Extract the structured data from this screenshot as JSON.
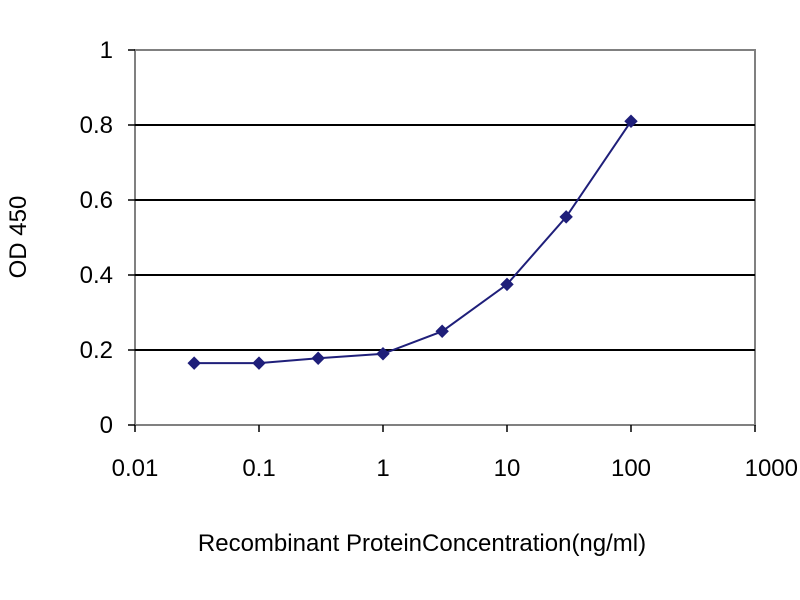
{
  "chart_data": {
    "type": "line",
    "title": "",
    "xlabel": "Recombinant ProteinConcentration(ng/ml)",
    "ylabel": "OD 450",
    "x_scale": "log",
    "xlim": [
      0.01,
      1000
    ],
    "ylim": [
      0,
      1
    ],
    "x_ticks": [
      {
        "value": 0.01,
        "label": "0.01"
      },
      {
        "value": 0.1,
        "label": "0.1"
      },
      {
        "value": 1,
        "label": "1"
      },
      {
        "value": 10,
        "label": "10"
      },
      {
        "value": 100,
        "label": "100"
      },
      {
        "value": 1000,
        "label": "1000"
      }
    ],
    "y_ticks": [
      {
        "value": 0,
        "label": "0"
      },
      {
        "value": 0.2,
        "label": "0.2"
      },
      {
        "value": 0.4,
        "label": "0.4"
      },
      {
        "value": 0.6,
        "label": "0.6"
      },
      {
        "value": 0.8,
        "label": "0.8"
      },
      {
        "value": 1,
        "label": "1"
      }
    ],
    "grid": "horizontal",
    "legend": "none",
    "series": [
      {
        "color": "#1f1f7a",
        "marker": "diamond",
        "points": [
          {
            "x": 0.03,
            "y": 0.165
          },
          {
            "x": 0.1,
            "y": 0.165
          },
          {
            "x": 0.3,
            "y": 0.178
          },
          {
            "x": 1,
            "y": 0.19
          },
          {
            "x": 3,
            "y": 0.25
          },
          {
            "x": 10,
            "y": 0.375
          },
          {
            "x": 30,
            "y": 0.555
          },
          {
            "x": 100,
            "y": 0.81
          }
        ]
      }
    ],
    "colors": {
      "plot_border": "#808080",
      "gridline": "#000000",
      "background": "#ffffff"
    }
  }
}
